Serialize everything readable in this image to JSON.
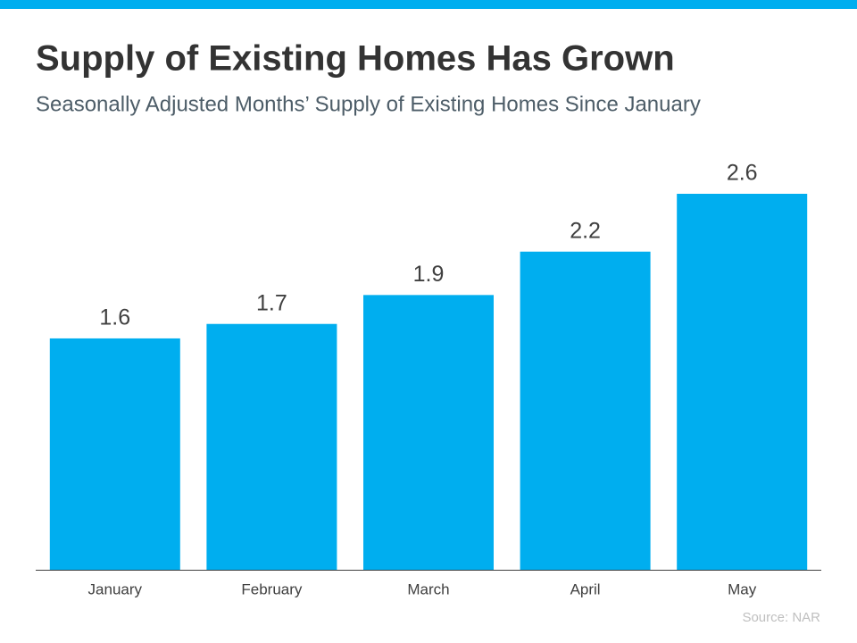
{
  "chart_data": {
    "type": "bar",
    "title": "Supply of Existing Homes Has Grown",
    "subtitle": "Seasonally Adjusted Months’ Supply of Existing Homes Since January",
    "categories": [
      "January",
      "February",
      "March",
      "April",
      "May"
    ],
    "values": [
      1.6,
      1.7,
      1.9,
      2.2,
      2.6
    ],
    "color": "#00aeef",
    "source": "Source: NAR"
  }
}
